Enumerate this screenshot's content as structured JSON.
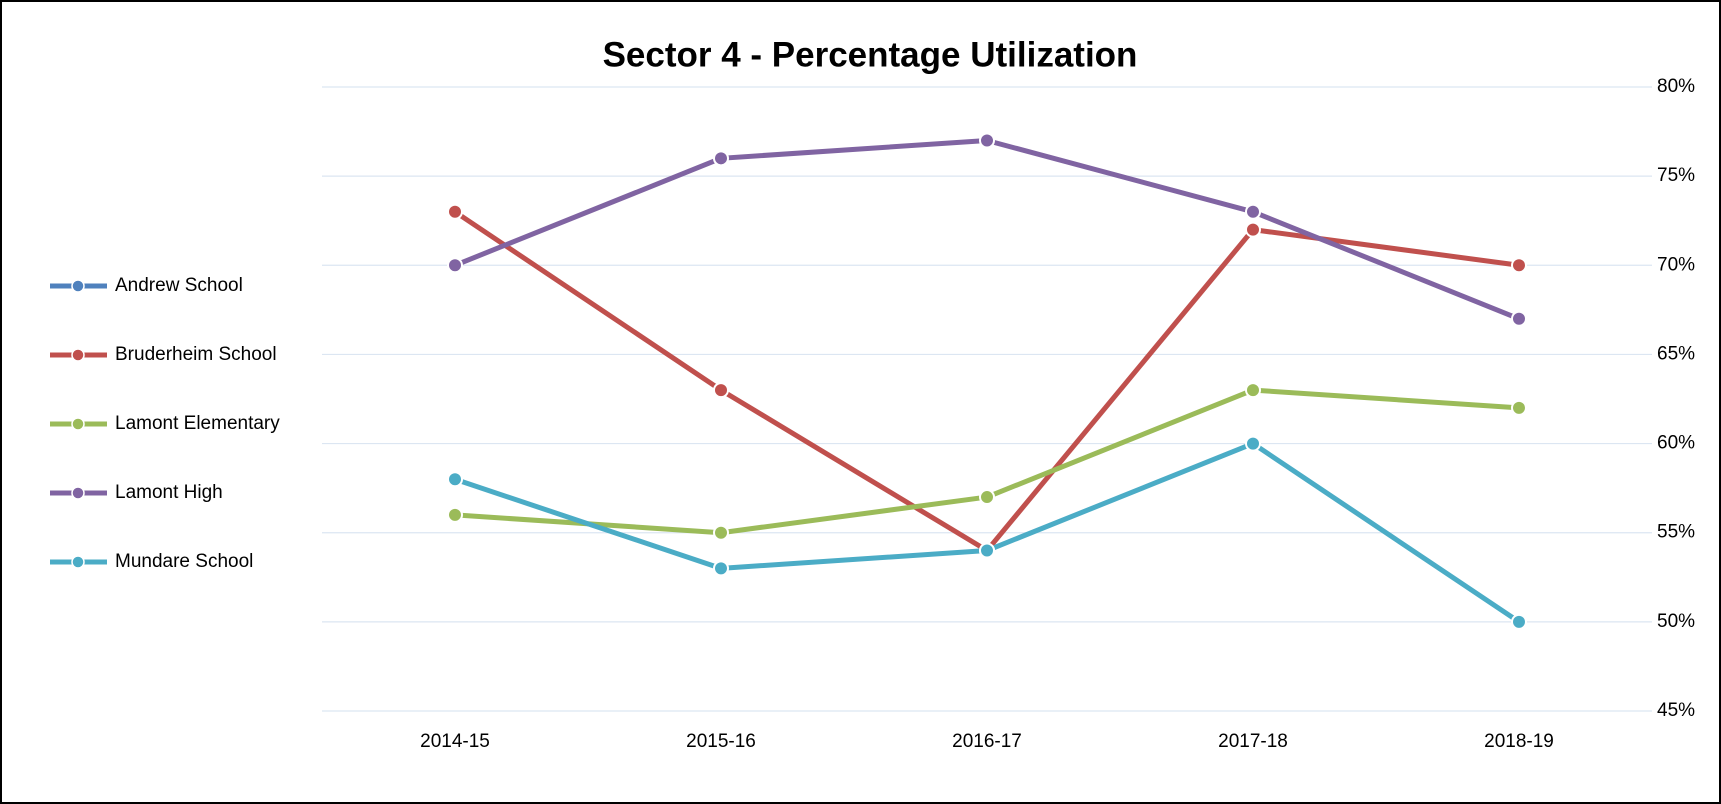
{
  "chart_data": {
    "type": "line",
    "title": "Sector 4 - Percentage Utilization",
    "categories": [
      "2014-15",
      "2015-16",
      "2016-17",
      "2017-18",
      "2018-19"
    ],
    "series": [
      {
        "name": "Andrew School",
        "color": "#4f81bd",
        "values": [
          null,
          null,
          null,
          null,
          null
        ]
      },
      {
        "name": "Bruderheim School",
        "color": "#c0504d",
        "values": [
          73,
          63,
          54,
          72,
          70
        ]
      },
      {
        "name": "Lamont Elementary",
        "color": "#9bbb59",
        "values": [
          56,
          55,
          57,
          63,
          62
        ]
      },
      {
        "name": "Lamont High",
        "color": "#8064a2",
        "values": [
          70,
          76,
          77,
          73,
          67
        ]
      },
      {
        "name": "Mundare School",
        "color": "#4bacc6",
        "values": [
          58,
          53,
          54,
          60,
          50
        ]
      }
    ],
    "ylim": [
      45,
      80
    ],
    "yticks": [
      {
        "value": 45,
        "label": "45%"
      },
      {
        "value": 50,
        "label": "50%"
      },
      {
        "value": 55,
        "label": "55%"
      },
      {
        "value": 60,
        "label": "60%"
      },
      {
        "value": 65,
        "label": "65%"
      },
      {
        "value": 70,
        "label": "70%"
      },
      {
        "value": 75,
        "label": "75%"
      },
      {
        "value": 80,
        "label": "80%"
      }
    ],
    "grid": true,
    "legend": "left"
  }
}
